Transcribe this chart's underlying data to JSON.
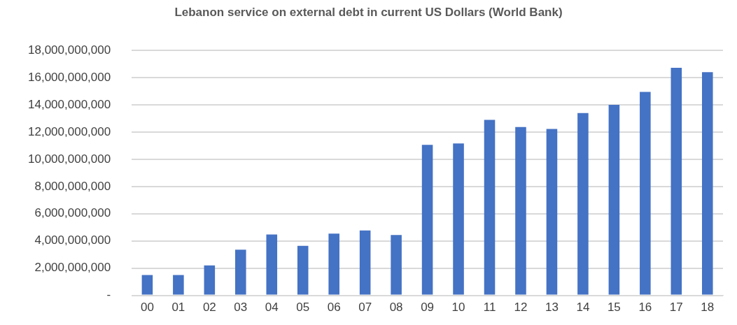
{
  "chart_data": {
    "type": "bar",
    "title": "Lebanon service on external debt in current US Dollars (World Bank)",
    "categories": [
      "00",
      "01",
      "02",
      "03",
      "04",
      "05",
      "06",
      "07",
      "08",
      "09",
      "10",
      "11",
      "12",
      "13",
      "14",
      "15",
      "16",
      "17",
      "18"
    ],
    "values": [
      1500000000,
      1500000000,
      2200000000,
      3360000000,
      4470000000,
      3640000000,
      4540000000,
      4770000000,
      4440000000,
      11060000000,
      11160000000,
      12900000000,
      12370000000,
      12230000000,
      13400000000,
      14000000000,
      14950000000,
      16730000000,
      16400000000
    ],
    "color": "#4472c4",
    "ylim": [
      0,
      18000000000
    ],
    "yticks": [
      {
        "value": 0,
        "label": "-"
      },
      {
        "value": 2000000000,
        "label": "2,000,000,000"
      },
      {
        "value": 4000000000,
        "label": "4,000,000,000"
      },
      {
        "value": 6000000000,
        "label": "6,000,000,000"
      },
      {
        "value": 8000000000,
        "label": "8,000,000,000"
      },
      {
        "value": 10000000000,
        "label": "10,000,000,000"
      },
      {
        "value": 12000000000,
        "label": "12,000,000,000"
      },
      {
        "value": 14000000000,
        "label": "14,000,000,000"
      },
      {
        "value": 16000000000,
        "label": "16,000,000,000"
      },
      {
        "value": 18000000000,
        "label": "18,000,000,000"
      }
    ],
    "grid": "y",
    "legend": false
  }
}
